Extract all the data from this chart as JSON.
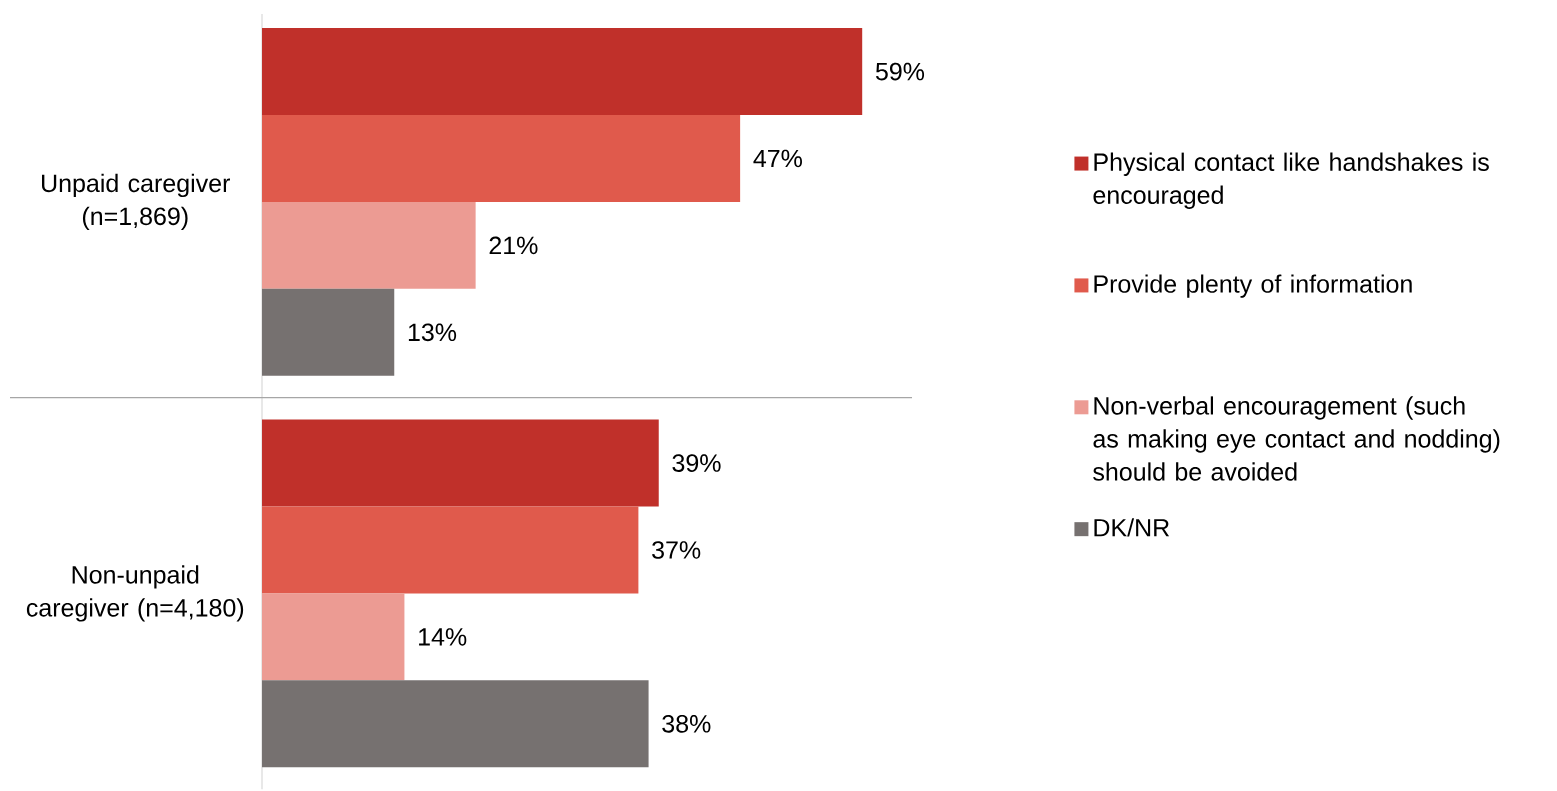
{
  "chart_data": {
    "type": "bar",
    "orientation": "horizontal",
    "legend": "right",
    "categories": [
      "Unpaid caregiver (n=1,869)",
      "Non-unpaid caregiver (n=4,180)"
    ],
    "series": [
      {
        "name": "Physical contact like handshakes is encouraged",
        "color": "#c0302a",
        "values": [
          59,
          39
        ],
        "value_labels": [
          "59%",
          "39%"
        ]
      },
      {
        "name": "Provide plenty of information",
        "color": "#e05a4c",
        "values": [
          47,
          37
        ],
        "value_labels": [
          "47%",
          "37%"
        ]
      },
      {
        "name": "Non-verbal encouragement (such as making eye contact and nodding) should be avoided",
        "color": "#ec9b93",
        "values": [
          21,
          14
        ],
        "value_labels": [
          "21%",
          "14%"
        ]
      },
      {
        "name": "DK/NR",
        "color": "#767170",
        "values": [
          13,
          38
        ],
        "value_labels": [
          "13%",
          "38%"
        ]
      }
    ]
  }
}
